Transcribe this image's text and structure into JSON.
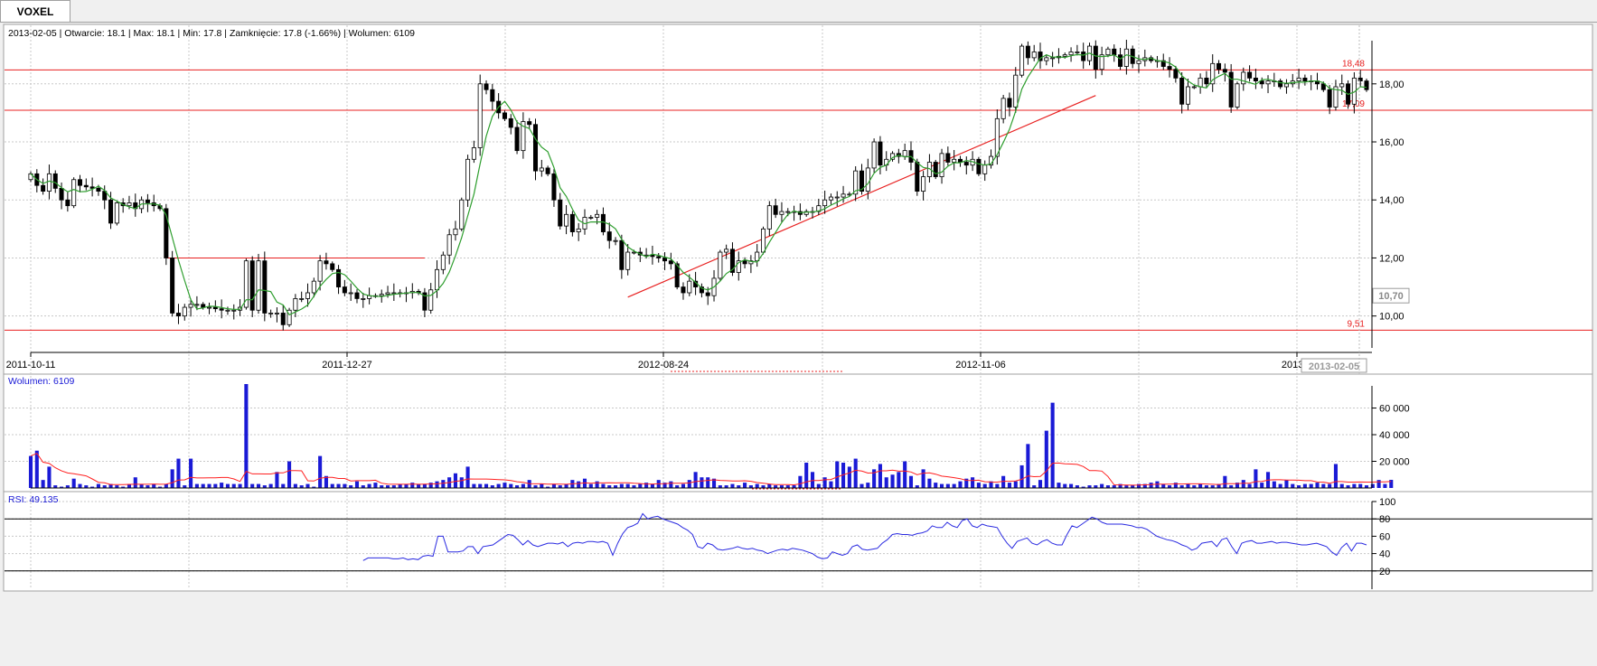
{
  "tab": {
    "label": "VOXEL"
  },
  "info": {
    "text": "2013-02-05 | Otwarcie: 18.1 | Max: 18.1 | Min: 17.8 | Zamknięcie: 17.8 (-1.66%)  | Wolumen: 6109"
  },
  "chart_data": [
    {
      "type": "candlestick",
      "ylim": [
        8.9,
        19.8
      ],
      "yticks": [
        "10,00",
        "12,00",
        "14,00",
        "16,00",
        "18,00"
      ],
      "ytick_values": [
        10,
        12,
        14,
        16,
        18
      ],
      "xtick_labels": [
        "2011-10-11",
        "2011-12-27",
        "2012-08-24",
        "2012-11-06",
        "2013-0"
      ],
      "cursor_date": "2013-02-05",
      "cursor_price": "10,70",
      "cursor_price_value": 10.7,
      "hlines": [
        {
          "value": 18.48,
          "label": "18,48"
        },
        {
          "value": 17.09,
          "label": "17,09"
        },
        {
          "value": 9.51,
          "label": "9,51"
        }
      ],
      "segment": {
        "value": 12.0
      },
      "trendline": {
        "from": 10.65,
        "to": 17.6
      },
      "closes": [
        14.9,
        14.5,
        14.3,
        14.9,
        14.4,
        14.0,
        13.8,
        14.7,
        14.5,
        14.45,
        14.4,
        14.3,
        14.0,
        13.2,
        13.9,
        13.8,
        13.9,
        13.7,
        14.0,
        13.9,
        13.8,
        13.7,
        12.0,
        10.1,
        10.0,
        10.3,
        10.4,
        10.4,
        10.3,
        10.3,
        10.25,
        10.2,
        10.2,
        10.2,
        10.3,
        11.9,
        10.2,
        11.9,
        10.1,
        10.1,
        10.1,
        9.7,
        10.2,
        10.6,
        10.6,
        10.8,
        11.2,
        11.9,
        11.8,
        11.6,
        11.0,
        10.8,
        10.8,
        10.6,
        10.6,
        10.7,
        10.7,
        10.75,
        10.8,
        10.8,
        10.8,
        10.8,
        10.85,
        10.8,
        10.2,
        10.9,
        11.6,
        12.1,
        12.8,
        13.0,
        14.0,
        15.4,
        15.8,
        18.0,
        17.8,
        17.4,
        17.0,
        16.8,
        16.5,
        15.7,
        16.7,
        16.6,
        15.0,
        15.1,
        14.9,
        14.0,
        13.1,
        13.5,
        12.9,
        13.0,
        13.4,
        13.4,
        13.5,
        12.9,
        12.6,
        12.6,
        11.6,
        12.2,
        12.2,
        12.1,
        12.1,
        12.05,
        12.0,
        11.9,
        11.8,
        11.0,
        10.8,
        11.2,
        11.0,
        10.8,
        10.7,
        11.3,
        12.2,
        12.3,
        11.5,
        11.9,
        11.8,
        11.9,
        12.2,
        13.0,
        13.8,
        13.5,
        13.6,
        13.6,
        13.6,
        13.5,
        13.6,
        13.6,
        13.8,
        14.0,
        14.1,
        14.1,
        14.2,
        14.2,
        15.0,
        14.3,
        15.1,
        16.0,
        15.2,
        15.4,
        15.6,
        15.5,
        15.7,
        15.3,
        14.3,
        14.8,
        15.3,
        14.8,
        15.6,
        15.3,
        15.4,
        15.3,
        15.2,
        15.4,
        14.9,
        15.2,
        15.5,
        16.8,
        17.5,
        17.2,
        18.3,
        19.3,
        18.9,
        19.1,
        18.8,
        18.9,
        18.9,
        18.95,
        19.0,
        19.1,
        19.1,
        18.8,
        19.3,
        18.5,
        19.0,
        19.2,
        19.0,
        18.6,
        19.2,
        18.7,
        18.8,
        18.9,
        18.8,
        18.8,
        18.6,
        18.5,
        18.2,
        17.3,
        17.9,
        17.9,
        18.2,
        18.0,
        18.7,
        18.5,
        18.4,
        17.2,
        18.0,
        18.4,
        18.2,
        18.1,
        18.0,
        18.1,
        18.1,
        17.9,
        18.0,
        18.1,
        18.2,
        18.1,
        18.1,
        18.0,
        17.8,
        17.2,
        17.9,
        18.0,
        17.3,
        18.2,
        18.1,
        17.8
      ]
    },
    {
      "type": "bar",
      "label": "Wolumen: 6109",
      "ylim": [
        0,
        78000
      ],
      "yticks": [
        "20 000",
        "40 000",
        "60 000"
      ],
      "ytick_values": [
        20000,
        40000,
        60000
      ],
      "values": [
        24000,
        28000,
        6000,
        16000,
        2000,
        1000,
        2000,
        7000,
        3000,
        2000,
        1000,
        3000,
        2000,
        3000,
        2000,
        1000,
        3000,
        8000,
        3000,
        2000,
        3000,
        1000,
        3000,
        14000,
        22000,
        2000,
        22000,
        3000,
        3000,
        3000,
        3000,
        4000,
        3000,
        3000,
        3000,
        78000,
        3000,
        3000,
        2000,
        3000,
        12000,
        3000,
        20000,
        3000,
        2000,
        3000,
        1000,
        24000,
        9000,
        3000,
        3000,
        3000,
        2000,
        5000,
        2000,
        3000,
        4000,
        2000,
        2000,
        2000,
        3000,
        3000,
        4000,
        3000,
        3000,
        4000,
        5000,
        6000,
        8000,
        11000,
        8000,
        16000,
        3000,
        3000,
        3000,
        2000,
        3000,
        4000,
        3000,
        2000,
        3000,
        6000,
        2000,
        3000,
        1000,
        3000,
        2000,
        3000,
        6000,
        5000,
        7000,
        3000,
        5000,
        3000,
        2000,
        2000,
        3000,
        3000,
        2000,
        3000,
        4000,
        3000,
        6000,
        4000,
        5000,
        2000,
        3000,
        6000,
        12000,
        8000,
        8000,
        7000,
        2000,
        2000,
        3000,
        2000,
        4000,
        2000,
        3000,
        2000,
        3000,
        2000,
        2000,
        2000,
        2000,
        9000,
        19000,
        12000,
        3000,
        8000,
        5000,
        20000,
        19000,
        16000,
        22000,
        3000,
        4000,
        14000,
        18000,
        8000,
        10000,
        12000,
        20000,
        9000,
        2000,
        14000,
        7000,
        4000,
        3000,
        3000,
        3000,
        5000,
        7000,
        8000,
        4000,
        3000,
        5000,
        3000,
        9000,
        4000,
        5000,
        17000,
        33000,
        2000,
        6000,
        43000,
        64000,
        4000,
        3000,
        3000,
        2000,
        1000,
        2000,
        2000,
        3000,
        2000,
        2000,
        3000,
        2000,
        2000,
        3000,
        3000,
        4000,
        5000,
        3000,
        2000,
        4000,
        2000,
        3000,
        2000,
        3000,
        2000,
        2000,
        3000,
        9000,
        2000,
        4000,
        6000,
        3000,
        14000,
        4000,
        12000,
        5000,
        3000,
        6000,
        3000,
        2000,
        3000,
        3000,
        4000,
        3000,
        3000,
        18000,
        3000,
        2000,
        3000,
        3000,
        2000,
        3000,
        6000,
        3000,
        6109
      ]
    },
    {
      "type": "line",
      "label": "RSI: 49.135",
      "ylim": [
        0,
        100
      ],
      "yticks": [
        "20",
        "40",
        "60",
        "80",
        "100"
      ],
      "ytick_values": [
        20,
        40,
        60,
        80,
        100
      ],
      "levels": [
        80,
        20
      ],
      "values": [
        32,
        35,
        35,
        35,
        35,
        35,
        34,
        34,
        35,
        33,
        34,
        33,
        37,
        38,
        37,
        60,
        60,
        42,
        42,
        42,
        43,
        48,
        48,
        40,
        48,
        49,
        50,
        54,
        58,
        62,
        61,
        56,
        50,
        55,
        50,
        48,
        50,
        52,
        52,
        51,
        53,
        48,
        52,
        53,
        52,
        54,
        54,
        53,
        54,
        52,
        38,
        52,
        63,
        70,
        72,
        75,
        86,
        80,
        82,
        83,
        80,
        78,
        76,
        74,
        70,
        67,
        62,
        48,
        46,
        52,
        50,
        45,
        44,
        45,
        46,
        48,
        46,
        45,
        46,
        44,
        43,
        40,
        42,
        44,
        45,
        44,
        46,
        45,
        44,
        42,
        40,
        36,
        34,
        35,
        42,
        40,
        38,
        40,
        48,
        50,
        45,
        44,
        45,
        46,
        52,
        56,
        62,
        63,
        62,
        62,
        61,
        63,
        64,
        66,
        72,
        70,
        70,
        76,
        72,
        70,
        78,
        80,
        72,
        70,
        74,
        72,
        71,
        70,
        60,
        52,
        46,
        54,
        56,
        58,
        52,
        50,
        54,
        56,
        52,
        50,
        50,
        62,
        72,
        70,
        74,
        78,
        82,
        80,
        76,
        74,
        74,
        74,
        74,
        73,
        72,
        70,
        70,
        68,
        64,
        60,
        58,
        56,
        55,
        53,
        50,
        48,
        44,
        46,
        52,
        53,
        54,
        48,
        56,
        58,
        48,
        40,
        52,
        54,
        55,
        52,
        52,
        53,
        54,
        52,
        53,
        53,
        52,
        51,
        50,
        50,
        51,
        52,
        50,
        48,
        42,
        38,
        47,
        52,
        43,
        52,
        52,
        50
      ]
    }
  ],
  "colors": {
    "ma": "#2e9e2e",
    "hline": "#e82020",
    "volume": "#1a1ad6",
    "volume_ma": "#ff2020",
    "rsi": "#2a2ae0",
    "grid": "#c8c8c8",
    "label_blue": "#1a1ad6"
  }
}
